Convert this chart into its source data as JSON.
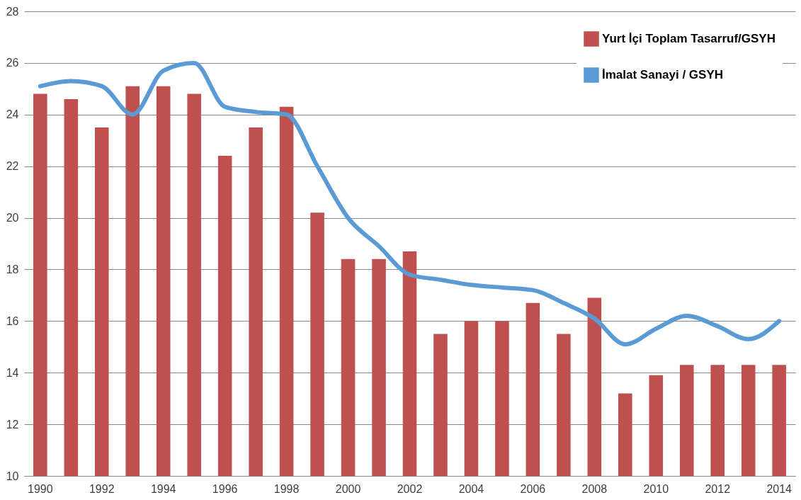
{
  "chart_data": {
    "type": "bar",
    "categories": [
      "1990",
      null,
      "1992",
      null,
      "1994",
      null,
      "1996",
      null,
      "1998",
      null,
      "2000",
      null,
      "2002",
      null,
      "2004",
      null,
      "2006",
      null,
      "2008",
      null,
      "2010",
      null,
      "2012",
      null,
      "2014"
    ],
    "series": [
      {
        "name": "Yurt İçi Toplam Tasarruf/GSYH",
        "color": "#c0504d",
        "values": [
          24.8,
          24.6,
          23.5,
          25.1,
          25.1,
          24.8,
          22.4,
          23.5,
          24.3,
          20.2,
          18.4,
          18.4,
          18.7,
          15.5,
          16.0,
          16.0,
          16.7,
          15.5,
          16.9,
          13.2,
          13.9,
          14.3,
          14.3,
          14.3,
          14.3
        ]
      },
      {
        "name": "İmalat Sanayi / GSYH",
        "type": "line",
        "color": "#5b9bd5",
        "values": [
          25.1,
          25.3,
          25.1,
          24.0,
          25.7,
          26.0,
          24.3,
          24.1,
          24.0,
          22.0,
          20.0,
          18.9,
          17.8,
          17.6,
          17.4,
          17.3,
          17.2,
          16.7,
          16.1,
          15.1,
          15.7,
          16.2,
          15.8,
          15.3,
          16.0
        ]
      }
    ],
    "ylim": [
      10,
      28
    ],
    "yticks": [
      10,
      12,
      14,
      16,
      18,
      20,
      22,
      24,
      26,
      28
    ],
    "grid": "y",
    "legend": "top right"
  }
}
